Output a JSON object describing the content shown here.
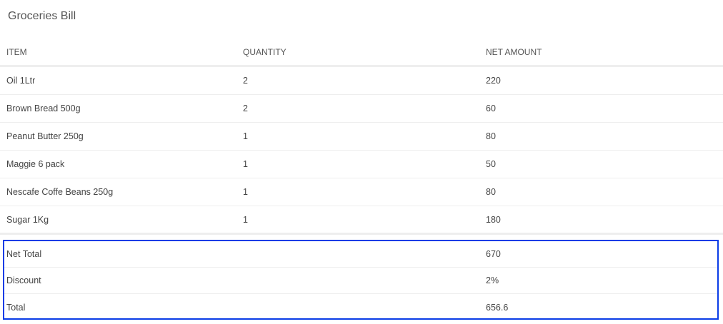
{
  "title": "Groceries Bill",
  "columns": [
    "ITEM",
    "QUANTITY",
    "NET AMOUNT"
  ],
  "rows": [
    {
      "item": "Oil 1Ltr",
      "qty": "2",
      "amount": "220"
    },
    {
      "item": "Brown Bread 500g",
      "qty": "2",
      "amount": "60"
    },
    {
      "item": "Peanut Butter 250g",
      "qty": "1",
      "amount": "80"
    },
    {
      "item": "Maggie 6 pack",
      "qty": "1",
      "amount": "50"
    },
    {
      "item": "Nescafe Coffe Beans 250g",
      "qty": "1",
      "amount": "80"
    },
    {
      "item": "Sugar 1Kg",
      "qty": "1",
      "amount": "180"
    }
  ],
  "summary": [
    {
      "label": "Net Total",
      "value": "670"
    },
    {
      "label": "Discount",
      "value": "2%"
    },
    {
      "label": "Total",
      "value": "656.6"
    }
  ],
  "colors": {
    "highlight_border": "#0a3ce6"
  }
}
